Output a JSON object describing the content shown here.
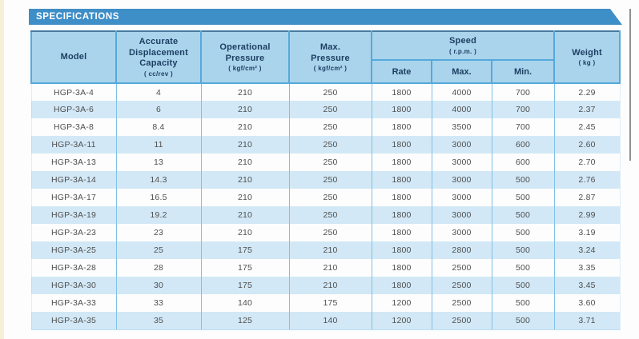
{
  "banner": {
    "title": "SPECIFICATIONS"
  },
  "table": {
    "column_ids": [
      "model",
      "displacement-capacity",
      "operational-pressure",
      "max-pressure",
      "speed-rate",
      "speed-max",
      "speed-min",
      "weight"
    ],
    "header": {
      "model": {
        "label": "Model"
      },
      "capacity": {
        "label": "Accurate\nDisplacement\nCapacity",
        "unit": "( cc/rev )"
      },
      "operational_pressure": {
        "label": "Operational\nPressure",
        "unit": "( kgf/cm² )"
      },
      "max_pressure": {
        "label": "Max.\nPressure",
        "unit": "( kgf/cm² )"
      },
      "speed": {
        "label": "Speed",
        "unit": "( r.p.m. )",
        "sub": [
          "Rate",
          "Max.",
          "Min."
        ]
      },
      "weight": {
        "label": "Weight",
        "unit": "( kg )"
      }
    },
    "rows": [
      [
        "HGP-3A-4",
        "4",
        "210",
        "250",
        "1800",
        "4000",
        "700",
        "2.29"
      ],
      [
        "HGP-3A-6",
        "6",
        "210",
        "250",
        "1800",
        "4000",
        "700",
        "2.37"
      ],
      [
        "HGP-3A-8",
        "8.4",
        "210",
        "250",
        "1800",
        "3500",
        "700",
        "2.45"
      ],
      [
        "HGP-3A-11",
        "11",
        "210",
        "250",
        "1800",
        "3000",
        "600",
        "2.60"
      ],
      [
        "HGP-3A-13",
        "13",
        "210",
        "250",
        "1800",
        "3000",
        "600",
        "2.70"
      ],
      [
        "HGP-3A-14",
        "14.3",
        "210",
        "250",
        "1800",
        "3000",
        "500",
        "2.76"
      ],
      [
        "HGP-3A-17",
        "16.5",
        "210",
        "250",
        "1800",
        "3000",
        "500",
        "2.87"
      ],
      [
        "HGP-3A-19",
        "19.2",
        "210",
        "250",
        "1800",
        "3000",
        "500",
        "2.99"
      ],
      [
        "HGP-3A-23",
        "23",
        "210",
        "250",
        "1800",
        "3000",
        "500",
        "3.19"
      ],
      [
        "HGP-3A-25",
        "25",
        "175",
        "210",
        "1800",
        "2800",
        "500",
        "3.24"
      ],
      [
        "HGP-3A-28",
        "28",
        "175",
        "210",
        "1800",
        "2500",
        "500",
        "3.35"
      ],
      [
        "HGP-3A-30",
        "30",
        "175",
        "210",
        "1800",
        "2500",
        "500",
        "3.45"
      ],
      [
        "HGP-3A-33",
        "33",
        "140",
        "175",
        "1200",
        "2500",
        "500",
        "3.60"
      ],
      [
        "HGP-3A-35",
        "35",
        "125",
        "140",
        "1200",
        "2500",
        "500",
        "3.71"
      ]
    ]
  },
  "colors": {
    "banner_blue": "#3e8ec7",
    "header_bg": "#aad4ec",
    "row_alt_bg": "#d2e8f6",
    "border_blue": "#55a9da",
    "header_text": "#1d3f63",
    "body_text": "#4f4f4f",
    "left_strip": "#f6f1d6"
  }
}
